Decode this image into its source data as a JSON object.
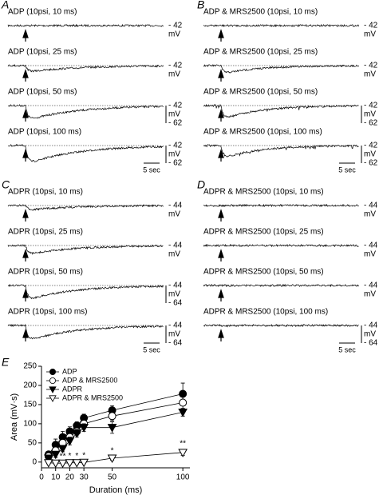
{
  "panels": [
    {
      "label": "A",
      "time_scale": "5 sec",
      "traces": [
        {
          "title": "ADP (10psi, 10 ms)",
          "scale": [
            "- 42",
            "mV"
          ]
        },
        {
          "title": "ADP (10psi, 25 ms)",
          "scale": [
            "- 42",
            "mV"
          ]
        },
        {
          "title": "ADP (10psi, 50 ms)",
          "scale": [
            "- 42",
            "mV",
            "- 62"
          ]
        },
        {
          "title": "ADP (10psi, 100 ms)",
          "scale": [
            "- 42",
            "mV",
            "- 62"
          ]
        }
      ]
    },
    {
      "label": "B",
      "time_scale": "5 sec",
      "traces": [
        {
          "title": "ADP & MRS2500 (10psi, 10 ms)",
          "scale": [
            "- 42",
            "mV"
          ]
        },
        {
          "title": "ADP & MRS2500 (10psi, 25 ms)",
          "scale": [
            "- 42",
            "mV"
          ]
        },
        {
          "title": "ADP & MRS2500 (10psi, 50 ms)",
          "scale": [
            "- 42",
            "mV",
            "- 62"
          ]
        },
        {
          "title": "ADP & MRS2500 (10psi, 100 ms)",
          "scale": [
            "- 42",
            "mV",
            "- 62"
          ]
        }
      ]
    },
    {
      "label": "C",
      "time_scale": "5 sec",
      "traces": [
        {
          "title": "ADPR (10psi, 10 ms)",
          "scale": [
            "- 44",
            "mV"
          ]
        },
        {
          "title": "ADPR (10psi, 25 ms)",
          "scale": [
            "- 44",
            "mV"
          ]
        },
        {
          "title": "ADPR (10psi, 50 ms)",
          "scale": [
            "- 44",
            "mV",
            "- 64"
          ]
        },
        {
          "title": "ADPR (10psi, 100 ms)",
          "scale": [
            "- 44",
            "mV",
            "- 64"
          ]
        }
      ]
    },
    {
      "label": "D",
      "time_scale": "5 sec",
      "traces": [
        {
          "title": "ADPR & MRS2500 (10psi, 10 ms)",
          "scale": [
            "- 44",
            "mV"
          ]
        },
        {
          "title": "ADPR & MRS2500 (10psi, 25 ms)",
          "scale": [
            "- 44",
            "mV"
          ]
        },
        {
          "title": "ADPR & MRS2500 (10psi, 50 ms)",
          "scale": [
            "- 44",
            "mV"
          ]
        },
        {
          "title": "ADPR & MRS2500 (10psi, 100 ms)",
          "scale": [
            "- 44",
            "mV",
            "- 64"
          ]
        }
      ]
    }
  ],
  "chart_data": {
    "type": "line",
    "label": "E",
    "x_label": "Duration (ms)",
    "y_label": "Area (mV·s)",
    "x": [
      5,
      10,
      15,
      20,
      25,
      30,
      50,
      100
    ],
    "xlim": [
      0,
      105
    ],
    "xticks": [
      0,
      10,
      20,
      30,
      50,
      100
    ],
    "ylim": [
      -15,
      250
    ],
    "yticks": [
      0,
      50,
      100,
      150,
      200,
      250
    ],
    "legend": "upper-left",
    "series": [
      {
        "name": "ADP",
        "color": "#000000",
        "marker": "circle-filled",
        "values": [
          20,
          45,
          65,
          80,
          95,
          115,
          135,
          178
        ],
        "errors": [
          8,
          15,
          15,
          12,
          10,
          10,
          12,
          28
        ]
      },
      {
        "name": "ADP & MRS2500",
        "color": "#000000",
        "marker": "circle-open",
        "values": [
          15,
          30,
          50,
          65,
          80,
          100,
          120,
          155
        ],
        "errors": [
          5,
          10,
          10,
          10,
          10,
          10,
          12,
          15
        ]
      },
      {
        "name": "ADPR",
        "color": "#000000",
        "marker": "triangle-filled",
        "values": [
          10,
          20,
          35,
          55,
          75,
          90,
          90,
          130
        ],
        "errors": [
          5,
          8,
          8,
          10,
          10,
          10,
          15,
          10
        ]
      },
      {
        "name": "ADPR & MRS2500",
        "color": "#000000",
        "marker": "triangle-open",
        "values": [
          -2,
          -3,
          -3,
          -2,
          -2,
          -1,
          10,
          25
        ],
        "errors": [
          3,
          3,
          3,
          3,
          3,
          3,
          5,
          8
        ]
      }
    ],
    "annotations": [
      {
        "x": 10,
        "text": "*"
      },
      {
        "x": 15,
        "text": "**"
      },
      {
        "x": 20,
        "text": "*"
      },
      {
        "x": 25,
        "text": "*"
      },
      {
        "x": 30,
        "text": "*"
      },
      {
        "x": 50,
        "text": "*"
      },
      {
        "x": 100,
        "text": "**"
      }
    ]
  }
}
